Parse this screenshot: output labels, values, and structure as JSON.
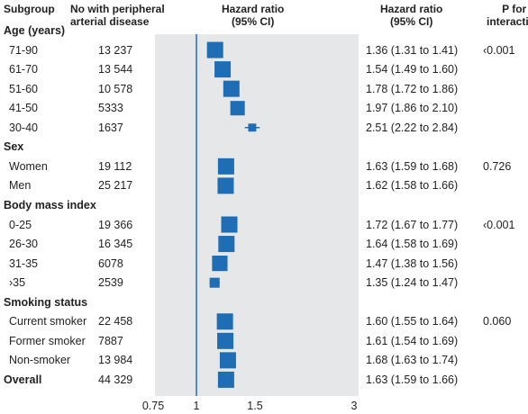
{
  "headers": {
    "subgroup": "Subgroup",
    "n": "No with peripheral\narterial disease",
    "hr_plot": "Hazard ratio\n(95% CI)",
    "hr_text": "Hazard ratio\n(95% CI)",
    "p": "P for\ninteraction"
  },
  "colors": {
    "marker": "#1f6db5",
    "panel": "#e6e7e8",
    "refline": "#1f6db5"
  },
  "chart_data": {
    "type": "forest",
    "xscale": "log",
    "xlim": [
      0.75,
      3
    ],
    "reference_line": 1,
    "xticks": [
      "0.75",
      "1",
      "1.5",
      "3"
    ],
    "rows": [
      {
        "kind": "group",
        "label": "Age (years)"
      },
      {
        "kind": "item",
        "label": "71-90",
        "n": "13 237",
        "hr": 1.36,
        "lo": 1.31,
        "hi": 1.41,
        "ci_text": "1.36 (1.31 to 1.41)",
        "p": "‹0.001"
      },
      {
        "kind": "item",
        "label": "61-70",
        "n": "13 544",
        "hr": 1.54,
        "lo": 1.49,
        "hi": 1.6,
        "ci_text": "1.54 (1.49 to 1.60)",
        "p": ""
      },
      {
        "kind": "item",
        "label": "51-60",
        "n": "10 578",
        "hr": 1.78,
        "lo": 1.72,
        "hi": 1.86,
        "ci_text": "1.78 (1.72 to 1.86)",
        "p": ""
      },
      {
        "kind": "item",
        "label": "41-50",
        "n": "5333",
        "hr": 1.97,
        "lo": 1.86,
        "hi": 2.1,
        "ci_text": "1.97 (1.86 to 2.10)",
        "p": ""
      },
      {
        "kind": "item",
        "label": "30-40",
        "n": "1637",
        "hr": 2.51,
        "lo": 2.22,
        "hi": 2.84,
        "ci_text": "2.51 (2.22 to 2.84)",
        "p": ""
      },
      {
        "kind": "group",
        "label": "Sex"
      },
      {
        "kind": "item",
        "label": "Women",
        "n": "19 112",
        "hr": 1.63,
        "lo": 1.59,
        "hi": 1.68,
        "ci_text": "1.63 (1.59 to 1.68)",
        "p": "0.726"
      },
      {
        "kind": "item",
        "label": "Men",
        "n": "25 217",
        "hr": 1.62,
        "lo": 1.58,
        "hi": 1.66,
        "ci_text": "1.62 (1.58 to 1.66)",
        "p": ""
      },
      {
        "kind": "group",
        "label": "Body mass index"
      },
      {
        "kind": "item",
        "label": "0-25",
        "n": "19 366",
        "hr": 1.72,
        "lo": 1.67,
        "hi": 1.77,
        "ci_text": "1.72 (1.67 to 1.77)",
        "p": "‹0.001"
      },
      {
        "kind": "item",
        "label": "26-30",
        "n": "16 345",
        "hr": 1.64,
        "lo": 1.58,
        "hi": 1.69,
        "ci_text": "1.64 (1.58 to 1.69)",
        "p": ""
      },
      {
        "kind": "item",
        "label": "31-35",
        "n": "6078",
        "hr": 1.47,
        "lo": 1.38,
        "hi": 1.56,
        "ci_text": "1.47 (1.38 to 1.56)",
        "p": ""
      },
      {
        "kind": "item",
        "label": "›35",
        "n": "2539",
        "hr": 1.35,
        "lo": 1.24,
        "hi": 1.47,
        "ci_text": "1.35 (1.24 to 1.47)",
        "p": ""
      },
      {
        "kind": "group",
        "label": "Smoking status"
      },
      {
        "kind": "item",
        "label": "Current smoker",
        "n": "22 458",
        "hr": 1.6,
        "lo": 1.55,
        "hi": 1.64,
        "ci_text": "1.60 (1.55 to 1.64)",
        "p": "0.060"
      },
      {
        "kind": "item",
        "label": "Former smoker",
        "n": "7887",
        "hr": 1.61,
        "lo": 1.54,
        "hi": 1.69,
        "ci_text": "1.61 (1.54 to 1.69)",
        "p": ""
      },
      {
        "kind": "item",
        "label": "Non-smoker",
        "n": "13 984",
        "hr": 1.68,
        "lo": 1.63,
        "hi": 1.74,
        "ci_text": "1.68 (1.63 to 1.74)",
        "p": ""
      },
      {
        "kind": "overall",
        "label": "Overall",
        "n": "44 329",
        "hr": 1.63,
        "lo": 1.59,
        "hi": 1.66,
        "ci_text": "1.63 (1.59 to 1.66)",
        "p": ""
      }
    ]
  }
}
